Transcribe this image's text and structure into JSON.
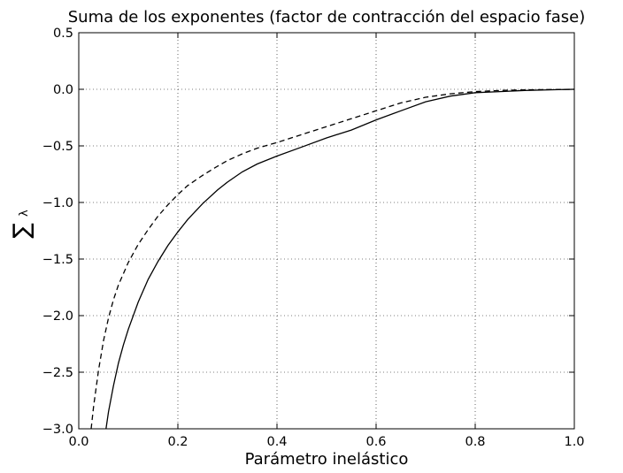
{
  "chart_data": {
    "type": "line",
    "title": "Suma de los exponentes (factor de contracción del espacio fase)",
    "xlabel": "Parámetro inelástico",
    "ylabel": "∑λ",
    "xlim": [
      0.0,
      1.0
    ],
    "ylim": [
      -3.0,
      0.5
    ],
    "grid": true,
    "x_ticks": [
      "0.0",
      "0.2",
      "0.4",
      "0.6",
      "0.8",
      "1.0"
    ],
    "y_ticks": [
      "−3.0",
      "−2.5",
      "−2.0",
      "−1.5",
      "−1.0",
      "−0.5",
      "0.0",
      "0.5"
    ],
    "series": [
      {
        "style": "solid",
        "color": "#000000",
        "x": [
          0.055,
          0.06,
          0.07,
          0.08,
          0.09,
          0.1,
          0.12,
          0.14,
          0.16,
          0.18,
          0.2,
          0.22,
          0.25,
          0.28,
          0.3,
          0.33,
          0.36,
          0.4,
          0.45,
          0.5,
          0.55,
          0.6,
          0.65,
          0.7,
          0.75,
          0.8,
          0.85,
          0.9,
          0.95,
          1.0
        ],
        "y": [
          -3.0,
          -2.85,
          -2.62,
          -2.42,
          -2.26,
          -2.12,
          -1.88,
          -1.68,
          -1.52,
          -1.38,
          -1.26,
          -1.15,
          -1.01,
          -0.89,
          -0.82,
          -0.73,
          -0.66,
          -0.59,
          -0.51,
          -0.43,
          -0.36,
          -0.27,
          -0.19,
          -0.11,
          -0.06,
          -0.03,
          -0.02,
          -0.01,
          -0.005,
          0.0
        ]
      },
      {
        "style": "dashed",
        "color": "#000000",
        "x": [
          0.025,
          0.03,
          0.04,
          0.05,
          0.06,
          0.07,
          0.08,
          0.1,
          0.12,
          0.14,
          0.16,
          0.18,
          0.2,
          0.22,
          0.25,
          0.28,
          0.3,
          0.33,
          0.36,
          0.4,
          0.45,
          0.5,
          0.55,
          0.6,
          0.65,
          0.7,
          0.75,
          0.8,
          0.85,
          0.9,
          0.95,
          1.0
        ],
        "y": [
          -3.0,
          -2.8,
          -2.48,
          -2.22,
          -2.02,
          -1.86,
          -1.73,
          -1.53,
          -1.37,
          -1.24,
          -1.12,
          -1.02,
          -0.93,
          -0.85,
          -0.76,
          -0.68,
          -0.63,
          -0.57,
          -0.52,
          -0.47,
          -0.4,
          -0.33,
          -0.26,
          -0.19,
          -0.12,
          -0.07,
          -0.04,
          -0.02,
          -0.01,
          -0.005,
          -0.002,
          0.0
        ]
      }
    ]
  }
}
